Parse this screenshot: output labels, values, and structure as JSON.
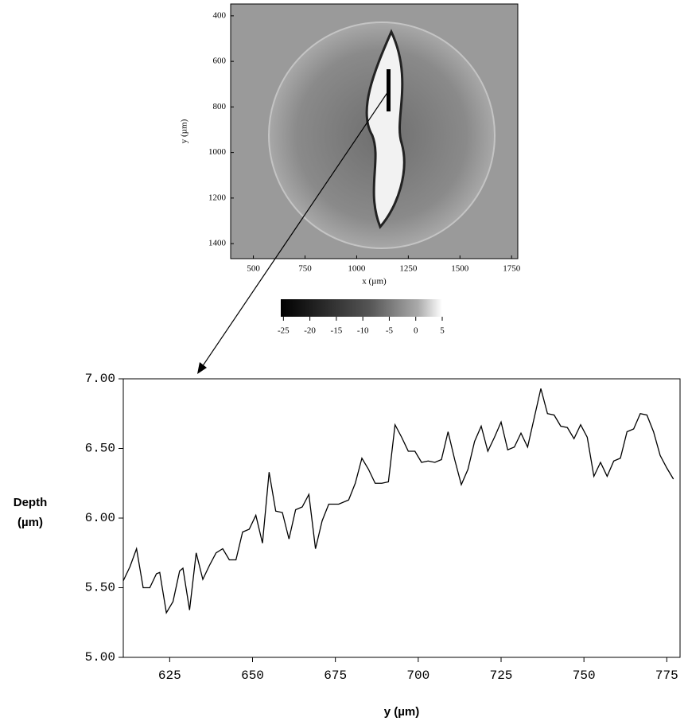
{
  "chart_data": [
    {
      "type": "image",
      "xlabel": "x (µm)",
      "ylabel": "y (µm)",
      "xlim": [
        390,
        1780
      ],
      "xticks": [
        500,
        750,
        1000,
        1250,
        1500,
        1750
      ],
      "ylim": [
        348,
        1466
      ],
      "yticks": [
        400,
        600,
        800,
        1000,
        1200,
        1400
      ],
      "clim": [
        -25.5,
        5
      ],
      "cticks": [
        -25,
        -20,
        -15,
        -10,
        -5,
        0,
        5
      ]
    },
    {
      "type": "line",
      "xlabel": "y (µm)",
      "ylabel": [
        "Depth",
        "(µm)"
      ],
      "xlim": [
        611,
        779
      ],
      "xticks": [
        625,
        650,
        675,
        700,
        725,
        750,
        775
      ],
      "ylim": [
        5,
        7
      ],
      "yticks": [
        {
          "value": 5,
          "label": "5.00"
        },
        {
          "value": 5.5,
          "label": "5.50"
        },
        {
          "value": 6,
          "label": "6.00"
        },
        {
          "value": 6.5,
          "label": "6.50"
        },
        {
          "value": 7,
          "label": "7.00"
        }
      ],
      "color": "#000000",
      "x": [
        611,
        613,
        615,
        617,
        619,
        621,
        622,
        624,
        626,
        628,
        629,
        631,
        633,
        635,
        637,
        639,
        641,
        643,
        645,
        647,
        649,
        651,
        653,
        655,
        657,
        659,
        661,
        663,
        665,
        667,
        669,
        671,
        673,
        676,
        679,
        681,
        683,
        685,
        687,
        689,
        691,
        693,
        695,
        697,
        699,
        701,
        703,
        705,
        707,
        709,
        711,
        713,
        715,
        717,
        719,
        721,
        723,
        725,
        727,
        729,
        731,
        733,
        735,
        737,
        739,
        741,
        743,
        745,
        747,
        749,
        751,
        753,
        755,
        757,
        759,
        761,
        763,
        765,
        767,
        769,
        771,
        773,
        775,
        777
      ],
      "values": [
        5.55,
        5.65,
        5.78,
        5.5,
        5.5,
        5.6,
        5.61,
        5.32,
        5.4,
        5.62,
        5.64,
        5.34,
        5.75,
        5.56,
        5.66,
        5.75,
        5.78,
        5.7,
        5.7,
        5.9,
        5.92,
        6.02,
        5.82,
        6.33,
        6.05,
        6.04,
        5.85,
        6.06,
        6.08,
        6.17,
        5.78,
        5.98,
        6.1,
        6.1,
        6.13,
        6.25,
        6.43,
        6.35,
        6.25,
        6.25,
        6.26,
        6.67,
        6.58,
        6.48,
        6.48,
        6.4,
        6.41,
        6.4,
        6.42,
        6.62,
        6.42,
        6.24,
        6.35,
        6.55,
        6.66,
        6.48,
        6.58,
        6.69,
        6.49,
        6.51,
        6.61,
        6.51,
        6.72,
        6.93,
        6.75,
        6.74,
        6.66,
        6.65,
        6.57,
        6.67,
        6.58,
        6.3,
        6.4,
        6.3,
        6.41,
        6.43,
        6.62,
        6.64,
        6.75,
        6.74,
        6.62,
        6.45,
        6.36,
        6.28
      ]
    }
  ]
}
